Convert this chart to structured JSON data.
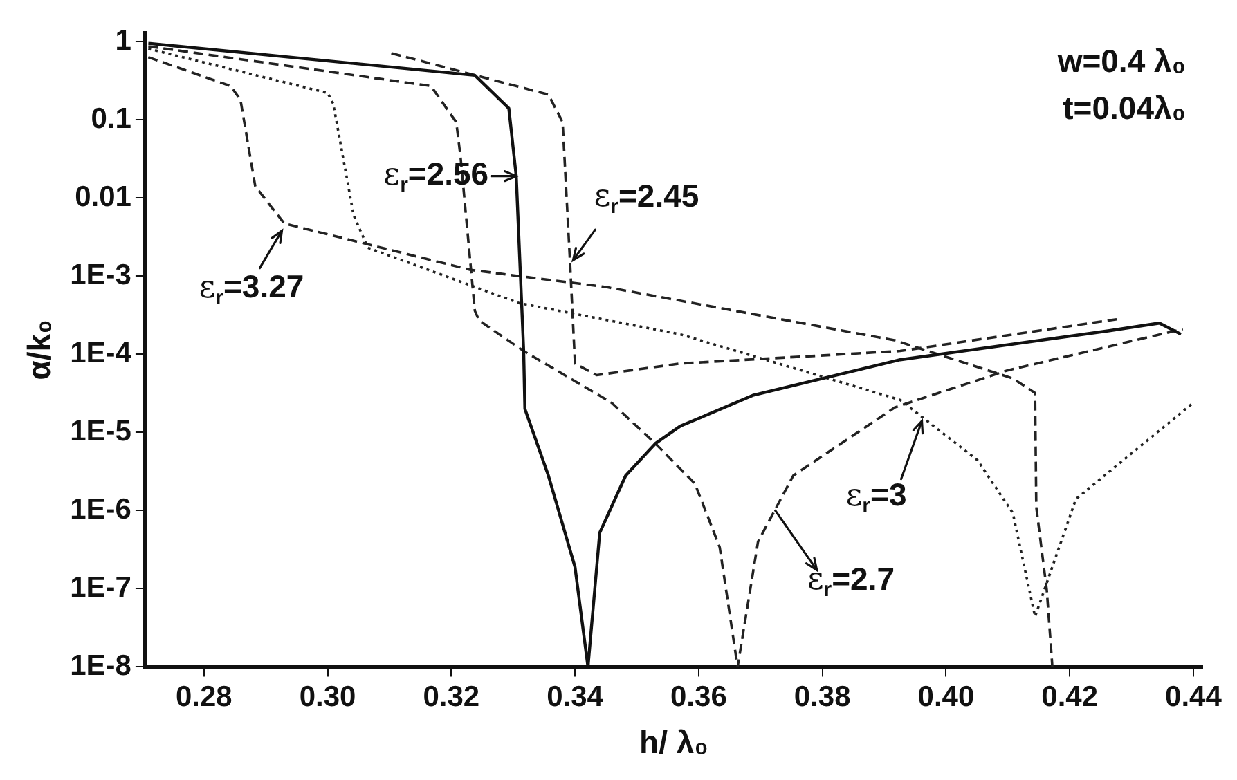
{
  "chart_data": {
    "type": "line",
    "xlabel": "h/ λ₀",
    "ylabel": "α/k₀",
    "log": "y",
    "grid": false,
    "legend": false,
    "marker": "none",
    "xlim": [
      0.2705,
      0.4415
    ],
    "ylim": [
      1e-08,
      1.3
    ],
    "xticks": [
      {
        "value": 0.28,
        "label": "0.28"
      },
      {
        "value": 0.3,
        "label": "0.30"
      },
      {
        "value": 0.32,
        "label": "0.32"
      },
      {
        "value": 0.34,
        "label": "0.34"
      },
      {
        "value": 0.36,
        "label": "0.36"
      },
      {
        "value": 0.38,
        "label": "0.38"
      },
      {
        "value": 0.4,
        "label": "0.40"
      },
      {
        "value": 0.42,
        "label": "0.42"
      },
      {
        "value": 0.44,
        "label": "0.44"
      }
    ],
    "yticks": [
      1,
      0.1,
      0.01,
      {
        "value": 0.001,
        "label": "1E-3"
      },
      {
        "value": 0.0001,
        "label": "1E-4"
      },
      {
        "value": 1e-05,
        "label": "1E-5"
      },
      {
        "value": 1e-06,
        "label": "1E-6"
      },
      {
        "value": 1e-07,
        "label": "1E-7"
      },
      {
        "value": 1e-08,
        "label": "1E-8"
      }
    ],
    "series": [
      {
        "color": "#111111",
        "line_style": "solid",
        "x": [
          0.271,
          0.3238,
          0.3293,
          0.3305,
          0.3317,
          0.3319,
          0.3357,
          0.34,
          0.3421,
          0.344,
          0.3482,
          0.353,
          0.357,
          0.3689,
          0.3926,
          0.4264,
          0.4345,
          0.438
        ],
        "values": [
          0.95,
          0.37,
          0.14,
          0.019,
          0.00011,
          2e-05,
          2.8e-06,
          1.9e-07,
          1e-08,
          5.2e-07,
          2.8e-06,
          7.2e-06,
          1.2e-05,
          3e-05,
          8.5e-05,
          0.0002,
          0.00025,
          0.00018
        ]
      },
      {
        "color": "#222222",
        "line_style": "dashed",
        "x": [
          0.271,
          0.3167,
          0.3208,
          0.3215,
          0.3238,
          0.3245,
          0.3317,
          0.3459,
          0.353,
          0.3594,
          0.3634,
          0.3663,
          0.3696,
          0.3753,
          0.3918,
          0.4099,
          0.4383
        ],
        "values": [
          0.87,
          0.27,
          0.093,
          0.033,
          0.00036,
          0.00027,
          0.00011,
          2.4e-05,
          7.2e-06,
          2.2e-06,
          3.4e-07,
          1e-08,
          4e-07,
          2.8e-06,
          2.1e-05,
          6.2e-05,
          0.00021
        ]
      },
      {
        "color": "#222222",
        "line_style": "dashed",
        "x": [
          0.3103,
          0.3357,
          0.338,
          0.3392,
          0.34,
          0.3435,
          0.357,
          0.3926,
          0.4276
        ],
        "values": [
          0.71,
          0.21,
          0.093,
          0.0015,
          7.6e-05,
          5.4e-05,
          7.6e-05,
          0.00011,
          0.00028
        ]
      },
      {
        "color": "#222222",
        "line_style": "dashed",
        "x": [
          0.271,
          0.2843,
          0.2859,
          0.2883,
          0.293,
          0.3231,
          0.3452,
          0.3918,
          0.4108,
          0.4144,
          0.4146,
          0.4163,
          0.4172
        ],
        "values": [
          0.63,
          0.27,
          0.18,
          0.014,
          0.0047,
          0.0012,
          0.00072,
          0.00015,
          4.9e-05,
          3.2e-05,
          1.1e-06,
          9.5e-08,
          1e-08
        ]
      },
      {
        "color": "#222222",
        "line_style": "dotted",
        "x": [
          0.271,
          0.3,
          0.3009,
          0.3042,
          0.3065,
          0.331,
          0.357,
          0.3729,
          0.3926,
          0.4051,
          0.4108,
          0.4144,
          0.421,
          0.44
        ],
        "values": [
          0.81,
          0.22,
          0.16,
          0.006,
          0.0023,
          0.00045,
          0.00018,
          7.6e-05,
          2.6e-05,
          4.4e-06,
          9.3e-07,
          4.4e-08,
          1.4e-06,
          2.4e-05
        ]
      }
    ],
    "annotations": [
      "w=0.4 λ₀",
      "t=0.04λ₀",
      {
        "text": "ε$_{r}$=2.56",
        "x": 0.3305,
        "y": 0.019
      },
      {
        "text": "ε$_{r}$=2.45",
        "x": 0.3397,
        "y": 0.0016
      },
      {
        "text": "ε$_{r}$=3.27",
        "x": 0.2926,
        "y": 0.0038
      },
      {
        "text": "ε$_{r}$=3",
        "x": 0.3961,
        "y": 1.4e-05
      },
      {
        "text": "ε$_{r}$=2.7",
        "x": 0.3724,
        "y": 1e-06
      }
    ]
  }
}
